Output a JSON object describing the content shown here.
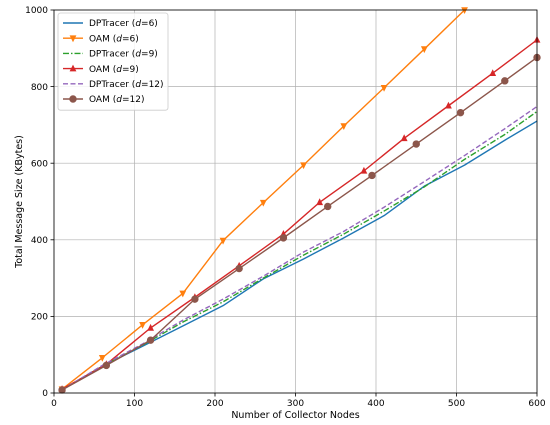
{
  "chart_data": {
    "type": "line",
    "title": "",
    "xlabel": "Number of Collector Nodes",
    "ylabel": "Total Message Size (KBytes)",
    "xlim": [
      0,
      600
    ],
    "ylim": [
      0,
      1000
    ],
    "xticks": [
      0,
      100,
      200,
      300,
      400,
      500,
      600
    ],
    "yticks": [
      0,
      200,
      400,
      600,
      800,
      1000
    ],
    "grid": true,
    "legend_position": "top-left",
    "series": [
      {
        "name_prefix": "DPTracer (",
        "name_var": "d",
        "name_suffix": "=6)",
        "color": "#1f77b4",
        "dash": "solid",
        "marker": "none",
        "x": [
          10,
          60,
          110,
          160,
          210,
          260,
          310,
          360,
          410,
          460,
          510,
          560,
          600
        ],
        "y": [
          8,
          70,
          122,
          175,
          228,
          298,
          350,
          405,
          463,
          540,
          595,
          660,
          710
        ]
      },
      {
        "name_prefix": "OAM (",
        "name_var": "d",
        "name_suffix": "=6)",
        "color": "#ff7f0e",
        "dash": "solid",
        "marker": "triangle-down",
        "x": [
          10,
          60,
          110,
          160,
          210,
          260,
          310,
          360,
          410,
          460,
          510
        ],
        "y": [
          10,
          92,
          178,
          260,
          398,
          497,
          595,
          697,
          797,
          898,
          1000
        ]
      },
      {
        "name_prefix": "DPTracer (",
        "name_var": "d",
        "name_suffix": "=9)",
        "color": "#2ca02c",
        "dash": "dashdot",
        "marker": "none",
        "x": [
          10,
          60,
          110,
          160,
          210,
          260,
          310,
          360,
          410,
          460,
          510,
          560,
          600
        ],
        "y": [
          8,
          70,
          125,
          185,
          238,
          300,
          360,
          415,
          475,
          538,
          610,
          675,
          735
        ]
      },
      {
        "name_prefix": "OAM (",
        "name_var": "d",
        "name_suffix": "=9)",
        "color": "#d62728",
        "dash": "solid",
        "marker": "triangle-up",
        "x": [
          10,
          65,
          120,
          175,
          230,
          285,
          330,
          385,
          435,
          490,
          545,
          600
        ],
        "y": [
          10,
          75,
          170,
          250,
          332,
          415,
          498,
          580,
          665,
          750,
          835,
          922
        ]
      },
      {
        "name_prefix": "DPTracer (",
        "name_var": "d",
        "name_suffix": "=12)",
        "color": "#9467bd",
        "dash": "dashed",
        "marker": "none",
        "x": [
          10,
          60,
          110,
          160,
          210,
          260,
          310,
          360,
          410,
          460,
          510,
          560,
          600
        ],
        "y": [
          8,
          72,
          128,
          190,
          245,
          305,
          368,
          422,
          485,
          552,
          620,
          690,
          748
        ]
      },
      {
        "name_prefix": "OAM (",
        "name_var": "d",
        "name_suffix": "=12)",
        "color": "#8c564b",
        "dash": "solid",
        "marker": "circle",
        "x": [
          10,
          65,
          120,
          175,
          230,
          285,
          340,
          395,
          450,
          505,
          560,
          600
        ],
        "y": [
          8,
          72,
          138,
          245,
          325,
          405,
          487,
          568,
          650,
          732,
          815,
          876
        ]
      }
    ]
  }
}
